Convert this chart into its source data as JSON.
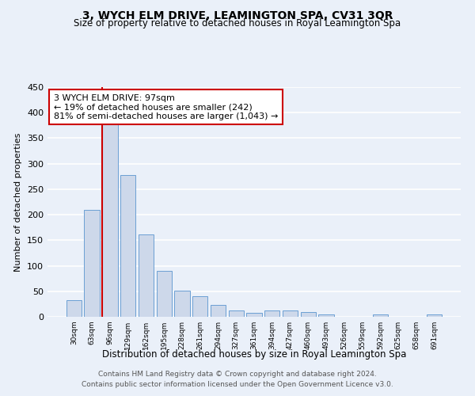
{
  "title": "3, WYCH ELM DRIVE, LEAMINGTON SPA, CV31 3QR",
  "subtitle": "Size of property relative to detached houses in Royal Leamington Spa",
  "xlabel": "Distribution of detached houses by size in Royal Leamington Spa",
  "ylabel": "Number of detached properties",
  "bar_labels": [
    "30sqm",
    "63sqm",
    "96sqm",
    "129sqm",
    "162sqm",
    "195sqm",
    "228sqm",
    "261sqm",
    "294sqm",
    "327sqm",
    "361sqm",
    "394sqm",
    "427sqm",
    "460sqm",
    "493sqm",
    "526sqm",
    "559sqm",
    "592sqm",
    "625sqm",
    "658sqm",
    "691sqm"
  ],
  "bar_values": [
    33,
    210,
    378,
    277,
    161,
    90,
    51,
    40,
    24,
    13,
    7,
    13,
    12,
    10,
    5,
    0,
    0,
    4,
    0,
    0,
    4
  ],
  "bar_color": "#cdd8ea",
  "bar_edge_color": "#6b9fd4",
  "background_color": "#eaf0f9",
  "grid_color": "#ffffff",
  "property_label": "3 WYCH ELM DRIVE: 97sqm",
  "annotation_line1": "← 19% of detached houses are smaller (242)",
  "annotation_line2": "81% of semi-detached houses are larger (1,043) →",
  "vline_color": "#cc0000",
  "vline_x_bin": 2,
  "annotation_box_color": "#ffffff",
  "annotation_box_edge": "#cc0000",
  "ylim": [
    0,
    450
  ],
  "yticks": [
    0,
    50,
    100,
    150,
    200,
    250,
    300,
    350,
    400,
    450
  ],
  "footer_line1": "Contains HM Land Registry data © Crown copyright and database right 2024.",
  "footer_line2": "Contains public sector information licensed under the Open Government Licence v3.0."
}
